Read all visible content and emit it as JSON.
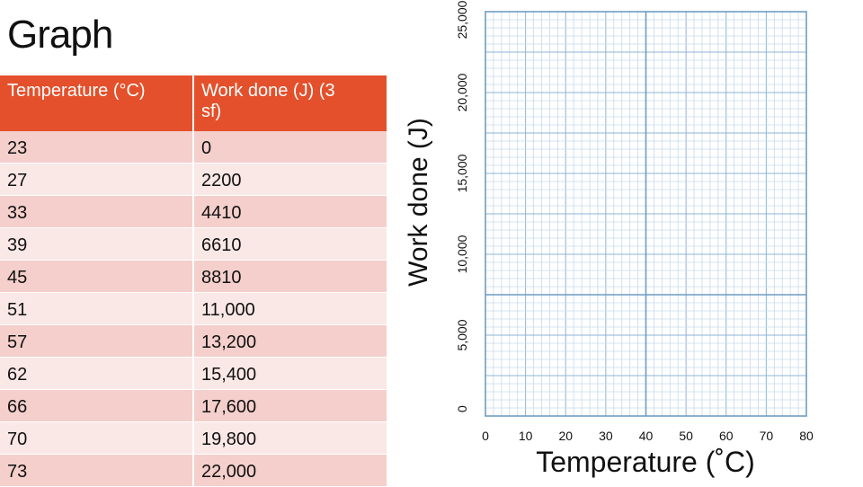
{
  "title": "Graph",
  "table": {
    "header": [
      "Temperature (°C)",
      "Work done (J) (3 sf)"
    ],
    "rows": [
      [
        "23",
        "0"
      ],
      [
        "27",
        "2200"
      ],
      [
        "33",
        "4410"
      ],
      [
        "39",
        "6610"
      ],
      [
        "45",
        "8810"
      ],
      [
        "51",
        "11,000"
      ],
      [
        "57",
        "13,200"
      ],
      [
        "62",
        "15,400"
      ],
      [
        "66",
        "17,600"
      ],
      [
        "70",
        "19,800"
      ],
      [
        "73",
        "22,000"
      ]
    ]
  },
  "graph": {
    "y_axis_title": "Work done (J)",
    "x_axis_title": "Temperature (˚C)",
    "y_tick_labels": [
      "0",
      "5,000",
      "10,000",
      "15,000",
      "20,000",
      "25,000"
    ],
    "x_tick_labels": [
      "0",
      "10",
      "20",
      "30",
      "40",
      "50",
      "60",
      "70",
      "80"
    ]
  }
}
